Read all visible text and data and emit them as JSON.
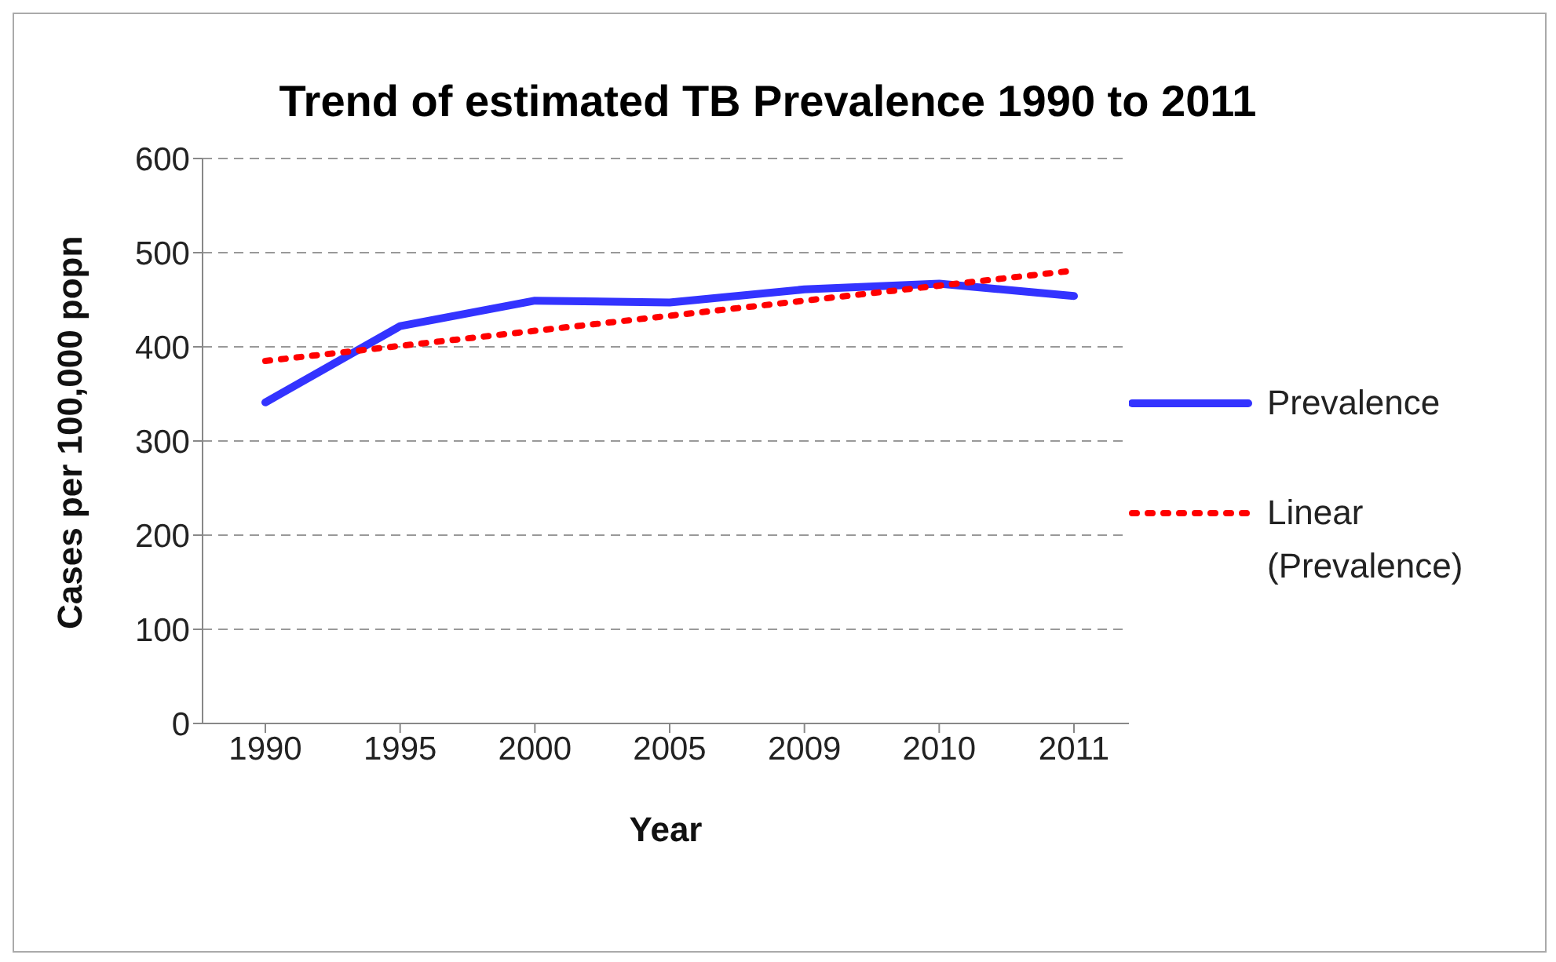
{
  "chart_data": {
    "type": "line",
    "title": "Trend of estimated TB Prevalence 1990 to 2011",
    "xlabel": "Year",
    "ylabel": "Cases per 100,000 popn",
    "categories": [
      "1990",
      "1995",
      "2000",
      "2005",
      "2009",
      "2010",
      "2011"
    ],
    "series": [
      {
        "name": "Prevalence",
        "color": "#3333ff",
        "values": [
          341,
          422,
          449,
          447,
          461,
          467,
          454
        ],
        "line_style": "solid"
      },
      {
        "name": "Linear (Prevalence)",
        "color": "#ff0000",
        "type": "line",
        "values": [
          385,
          401,
          417,
          433,
          449,
          465,
          481
        ],
        "line_style": "dotted"
      }
    ],
    "ylim": [
      0,
      600
    ],
    "yticks": [
      0,
      100,
      200,
      300,
      400,
      500,
      600
    ],
    "grid": "y",
    "legend": "right",
    "marker": "none"
  }
}
